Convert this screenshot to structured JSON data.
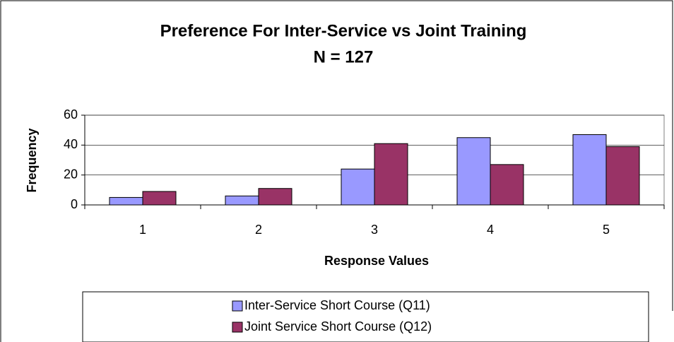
{
  "chart_data": {
    "type": "bar",
    "title": "Preference For Inter-Service vs Joint Training",
    "subtitle": "N = 127",
    "x_label": "Response Values",
    "y_label": "Frequency",
    "categories": [
      "1",
      "2",
      "3",
      "4",
      "5"
    ],
    "series": [
      {
        "name": "Inter-Service Short Course (Q11)",
        "color": "#9999ff",
        "values": [
          5,
          6,
          24,
          45,
          47
        ]
      },
      {
        "name": "Joint Service Short Course (Q12)",
        "color": "#993366",
        "values": [
          9,
          11,
          41,
          27,
          39
        ]
      }
    ],
    "ylim": [
      0,
      60
    ],
    "yticks": [
      0,
      20,
      40,
      60
    ],
    "grid": true,
    "legend": "bottom"
  }
}
